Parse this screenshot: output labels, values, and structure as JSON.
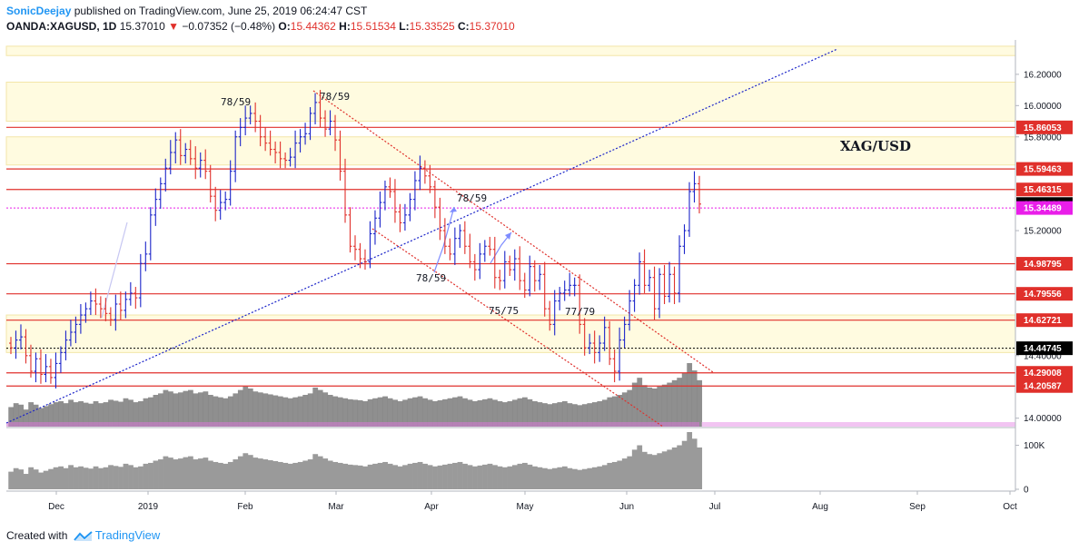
{
  "header": {
    "author": "SonicDeejay",
    "published_text": " published on TradingView.com, June 25, 2019 06:24:47 CST",
    "symbol": "OANDA:XAGUSD, 1D",
    "last": "15.37010",
    "change_arrow": "▼",
    "change": "−0.07352 (−0.48%)",
    "open_label": "O:",
    "open": "15.44362",
    "high_label": "H:",
    "high": "15.51534",
    "low_label": "L:",
    "low": "15.33525",
    "close_label": "C:",
    "close": "15.37010"
  },
  "footer": {
    "created_with": "Created with",
    "brand": "TradingView"
  },
  "chart_data": {
    "type": "candlestick",
    "symbol": "XAG/USD",
    "timeframe": "1D",
    "x_labels": [
      "Dec",
      "2019",
      "Feb",
      "Mar",
      "Apr",
      "May",
      "Jun",
      "Jul",
      "Aug",
      "Sep",
      "Oct"
    ],
    "y_ticks": [
      "16.20000",
      "16.00000",
      "15.80000",
      "15.20000",
      "14.40000",
      "14.00000"
    ],
    "ylim": [
      13.94,
      16.42
    ],
    "volume_ticks": [
      "100K",
      "0"
    ],
    "volume_max": 130000,
    "price_badges": [
      {
        "label": "15.86053",
        "value": 15.86053,
        "color": "#e0302b",
        "text_color": "#ffffff"
      },
      {
        "label": "15.59463",
        "value": 15.59463,
        "color": "#e0302b",
        "text_color": "#ffffff"
      },
      {
        "label": "15.46315",
        "value": 15.46315,
        "color": "#e0302b",
        "text_color": "#ffffff"
      },
      {
        "label": "15.37010",
        "value": 15.3701,
        "color": "#000000",
        "text_color": "#ffffff"
      },
      {
        "label": "15.34489",
        "value": 15.34489,
        "color": "#e91ee9",
        "text_color": "#ffffff"
      },
      {
        "label": "14.98795",
        "value": 14.98795,
        "color": "#e0302b",
        "text_color": "#ffffff"
      },
      {
        "label": "14.79556",
        "value": 14.79556,
        "color": "#e0302b",
        "text_color": "#ffffff"
      },
      {
        "label": "14.62721",
        "value": 14.62721,
        "color": "#e0302b",
        "text_color": "#ffffff"
      },
      {
        "label": "14.44745",
        "value": 14.44745,
        "color": "#000000",
        "text_color": "#ffffff"
      },
      {
        "label": "14.29008",
        "value": 14.29008,
        "color": "#e0302b",
        "text_color": "#ffffff"
      },
      {
        "label": "14.20587",
        "value": 14.20587,
        "color": "#e0302b",
        "text_color": "#ffffff"
      }
    ],
    "horizontal_levels": [
      {
        "value": 15.86053,
        "color": "#e0302b",
        "style": "solid"
      },
      {
        "value": 15.59463,
        "color": "#e0302b",
        "style": "solid"
      },
      {
        "value": 15.46315,
        "color": "#e0302b",
        "style": "solid"
      },
      {
        "value": 15.34489,
        "color": "#e91ee9",
        "style": "dotted"
      },
      {
        "value": 14.98795,
        "color": "#e0302b",
        "style": "solid"
      },
      {
        "value": 14.79556,
        "color": "#e0302b",
        "style": "solid"
      },
      {
        "value": 14.62721,
        "color": "#e0302b",
        "style": "solid"
      },
      {
        "value": 14.44745,
        "color": "#000000",
        "style": "dotted"
      },
      {
        "value": 14.29008,
        "color": "#e0302b",
        "style": "solid"
      },
      {
        "value": 14.20587,
        "color": "#e0302b",
        "style": "solid"
      }
    ],
    "zones": [
      {
        "from": 16.32,
        "to": 16.38
      },
      {
        "from": 15.9,
        "to": 16.15
      },
      {
        "from": 15.62,
        "to": 15.8
      },
      {
        "from": 14.42,
        "to": 14.66
      }
    ],
    "annotations": [
      {
        "text": "78/59"
      },
      {
        "text": "78/59"
      },
      {
        "text": "78/59"
      },
      {
        "text": "78/59"
      },
      {
        "text": "75/75"
      },
      {
        "text": "77/79"
      }
    ],
    "title": "XAG/USD",
    "candles_close": [
      14.45,
      14.5,
      14.52,
      14.4,
      14.3,
      14.38,
      14.28,
      14.33,
      14.26,
      14.35,
      14.42,
      14.5,
      14.55,
      14.6,
      14.66,
      14.7,
      14.75,
      14.73,
      14.7,
      14.67,
      14.63,
      14.73,
      14.69,
      14.76,
      14.8,
      14.77,
      14.99,
      15.05,
      15.3,
      15.4,
      15.5,
      15.6,
      15.7,
      15.78,
      15.68,
      15.72,
      15.66,
      15.6,
      15.65,
      15.58,
      15.42,
      15.33,
      15.38,
      15.4,
      15.58,
      15.8,
      15.86,
      15.92,
      15.95,
      15.9,
      15.8,
      15.76,
      15.72,
      15.7,
      15.66,
      15.65,
      15.67,
      15.76,
      15.8,
      15.82,
      15.95,
      16.02,
      15.92,
      15.85,
      15.9,
      15.78,
      15.58,
      15.3,
      15.1,
      15.08,
      15.02,
      15.0,
      15.18,
      15.28,
      15.38,
      15.48,
      15.45,
      15.32,
      15.25,
      15.3,
      15.4,
      15.52,
      15.6,
      15.55,
      15.48,
      15.35,
      15.2,
      15.1,
      15.05,
      15.15,
      15.2,
      15.1,
      15.0,
      14.95,
      15.05,
      15.1,
      15.08,
      14.9,
      14.88,
      15.0,
      14.95,
      15.02,
      14.88,
      14.82,
      14.97,
      14.88,
      14.92,
      14.7,
      14.6,
      14.75,
      14.8,
      14.82,
      14.85,
      14.85,
      14.6,
      14.45,
      14.48,
      14.42,
      14.48,
      14.58,
      14.38,
      14.3,
      14.5,
      14.6,
      14.75,
      14.85,
      15.0,
      14.85,
      14.9,
      14.7,
      14.92,
      14.78,
      14.92,
      14.8,
      15.1,
      15.2,
      15.45,
      15.5,
      15.37
    ],
    "volume": [
      40000,
      48000,
      45000,
      35000,
      50000,
      45000,
      38000,
      42000,
      46000,
      50000,
      52000,
      48000,
      55000,
      50000,
      52000,
      49000,
      47000,
      52000,
      48000,
      50000,
      55000,
      53000,
      51000,
      58000,
      55000,
      50000,
      52000,
      58000,
      60000,
      65000,
      68000,
      75000,
      72000,
      68000,
      70000,
      73000,
      75000,
      68000,
      70000,
      72000,
      65000,
      62000,
      60000,
      58000,
      62000,
      68000,
      75000,
      82000,
      78000,
      72000,
      70000,
      68000,
      66000,
      64000,
      62000,
      60000,
      58000,
      60000,
      62000,
      65000,
      68000,
      80000,
      75000,
      70000,
      65000,
      62000,
      60000,
      58000,
      56000,
      55000,
      54000,
      52000,
      56000,
      58000,
      60000,
      62000,
      58000,
      55000,
      52000,
      55000,
      58000,
      60000,
      62000,
      58000,
      55000,
      52000,
      54000,
      56000,
      58000,
      60000,
      62000,
      58000,
      55000,
      52000,
      54000,
      56000,
      58000,
      55000,
      52000,
      50000,
      52000,
      55000,
      58000,
      60000,
      56000,
      52000,
      50000,
      48000,
      46000,
      48000,
      50000,
      52000,
      48000,
      46000,
      44000,
      46000,
      48000,
      50000,
      52000,
      55000,
      60000,
      62000,
      65000,
      70000,
      75000,
      90000,
      100000,
      85000,
      80000,
      78000,
      82000,
      86000,
      90000,
      95000,
      100000,
      110000,
      130000,
      115000,
      95000
    ]
  }
}
